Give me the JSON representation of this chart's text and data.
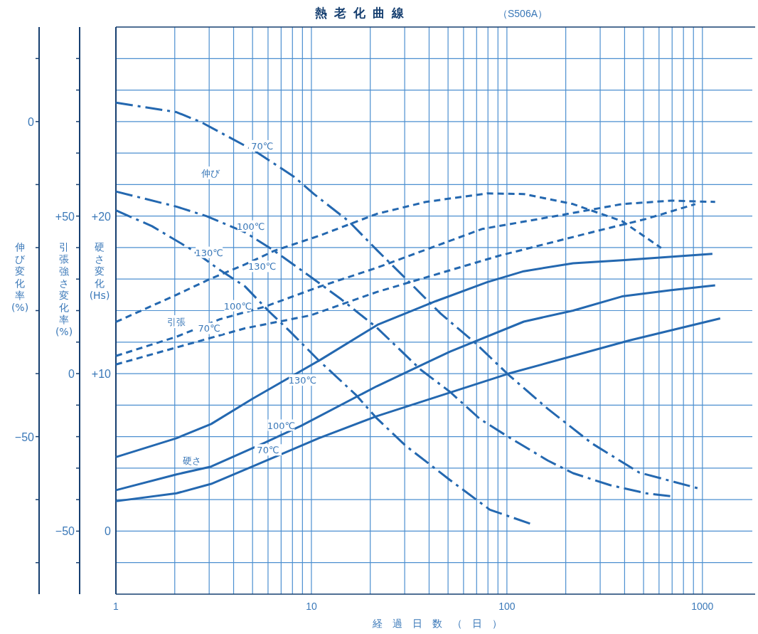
{
  "chart_data": {
    "type": "line",
    "title": "熱老化曲線",
    "subtitle": "（S506A）",
    "xlabel": "経過日数（日）",
    "ylabel": "硬さ変化(Hs)",
    "y2label": "引張強さ変化率(%)",
    "y3label": "伸び変化率(%)",
    "log": "x",
    "grid": true,
    "xlim": [
      1,
      1800
    ],
    "xticks": [
      1,
      {
        "value": 2,
        "label": null
      },
      {
        "value": 3,
        "label": null
      },
      {
        "value": 4,
        "label": null
      },
      {
        "value": 5,
        "label": null
      },
      {
        "value": 6,
        "label": null
      },
      {
        "value": 7,
        "label": null
      },
      {
        "value": 8,
        "label": null
      },
      {
        "value": 9,
        "label": null
      },
      10,
      {
        "value": 20,
        "label": null
      },
      {
        "value": 30,
        "label": null
      },
      {
        "value": 40,
        "label": null
      },
      {
        "value": 50,
        "label": null
      },
      {
        "value": 60,
        "label": null
      },
      {
        "value": 70,
        "label": null
      },
      {
        "value": 80,
        "label": null
      },
      {
        "value": 90,
        "label": null
      },
      100,
      {
        "value": 200,
        "label": null
      },
      {
        "value": 300,
        "label": null
      },
      {
        "value": 400,
        "label": null
      },
      {
        "value": 500,
        "label": null
      },
      {
        "value": 600,
        "label": null
      },
      {
        "value": 700,
        "label": null
      },
      {
        "value": 800,
        "label": null
      },
      {
        "value": 900,
        "label": null
      },
      1000
    ],
    "ylim": [
      -4,
      32
    ],
    "yticks": [
      {
        "value": -2,
        "label": null
      },
      0,
      {
        "value": 2,
        "label": null
      },
      {
        "value": 4,
        "label": null
      },
      {
        "value": 6,
        "label": null
      },
      {
        "value": 8,
        "label": null
      },
      {
        "value": 10,
        "label": "+10"
      },
      {
        "value": 12,
        "label": null
      },
      {
        "value": 14,
        "label": null
      },
      {
        "value": 16,
        "label": null
      },
      {
        "value": 18,
        "label": null
      },
      {
        "value": 20,
        "label": "+20"
      },
      {
        "value": 22,
        "label": null
      },
      {
        "value": 24,
        "label": null
      },
      {
        "value": 26,
        "label": null
      },
      {
        "value": 28,
        "label": null
      },
      {
        "value": 30,
        "label": null
      }
    ],
    "y2lim": [
      -70,
      110
    ],
    "y2ticks": [
      {
        "value": -60,
        "label": null
      },
      {
        "value": -50,
        "label": "−50"
      },
      {
        "value": -40,
        "label": null
      },
      {
        "value": -30,
        "label": null
      },
      {
        "value": -20,
        "label": null
      },
      {
        "value": -10,
        "label": null
      },
      0,
      {
        "value": 10,
        "label": null
      },
      {
        "value": 20,
        "label": null
      },
      {
        "value": 30,
        "label": null
      },
      {
        "value": 40,
        "label": null
      },
      {
        "value": 50,
        "label": "+50"
      },
      {
        "value": 60,
        "label": null
      },
      {
        "value": 70,
        "label": null
      },
      {
        "value": 80,
        "label": null
      },
      {
        "value": 90,
        "label": null
      },
      {
        "value": 100,
        "label": null
      }
    ],
    "y3lim": [
      -75,
      15
    ],
    "y3ticks": [
      {
        "value": -70,
        "label": null
      },
      {
        "value": -60,
        "label": null
      },
      {
        "value": -50,
        "label": "−50"
      },
      {
        "value": -40,
        "label": null
      },
      {
        "value": -30,
        "label": null
      },
      {
        "value": -20,
        "label": null
      },
      {
        "value": -10,
        "label": null
      },
      0,
      {
        "value": 10,
        "label": null
      }
    ],
    "series": [
      {
        "name": "70℃",
        "axis": "y3",
        "color": "#2468b0",
        "line_style": "dashdot",
        "x": [
          1,
          2.04,
          2.73,
          5.16,
          8.18,
          10.3,
          15.5,
          21.8,
          31.5,
          45.9,
          68.6,
          102,
          162,
          273,
          475,
          951
        ],
        "values": [
          3,
          1.5,
          -0.1,
          -4.7,
          -8.8,
          -11.5,
          -15.8,
          -20.5,
          -25.4,
          -30.5,
          -35.1,
          -40.2,
          -45.6,
          -51.1,
          -55.7,
          -58.2
        ]
      },
      {
        "name": "100℃",
        "axis": "y3",
        "color": "#2468b0",
        "line_style": "dashdot",
        "x": [
          1,
          2.04,
          2.9,
          4.59,
          6.31,
          9.67,
          14.2,
          21.6,
          36.3,
          51.2,
          72.8,
          100,
          162,
          218,
          337,
          516,
          709
        ],
        "values": [
          -11.1,
          -13.5,
          -15,
          -17.6,
          -20.3,
          -24.4,
          -28.2,
          -32.7,
          -39.4,
          -42.9,
          -47.2,
          -49.9,
          -53.8,
          -55.8,
          -57.7,
          -59,
          -59.5
        ]
      },
      {
        "name": "130℃",
        "axis": "y3",
        "color": "#2468b0",
        "line_style": "dashdot",
        "x": [
          1,
          1.53,
          2.43,
          3.42,
          4.59,
          6.1,
          7.71,
          10.9,
          16.8,
          21.6,
          30.5,
          51.2,
          81.8,
          137
        ],
        "values": [
          -14.1,
          -16.6,
          -20.3,
          -23.6,
          -26.2,
          -30.2,
          -33.2,
          -37.9,
          -43.3,
          -47.1,
          -51.5,
          -56.9,
          -61.6,
          -64
        ]
      },
      {
        "name": "70℃",
        "axis": "y2",
        "color": "#2468b0",
        "line_style": "dashed",
        "x": [
          1,
          2.04,
          4.59,
          9.92,
          21.6,
          91,
          290,
          516,
          920
        ],
        "values": [
          2.9,
          8.3,
          14.4,
          18.5,
          25.9,
          37.4,
          45.3,
          49.1,
          53.8
        ]
      },
      {
        "name": "100℃",
        "axis": "y2",
        "color": "#2468b0",
        "line_style": "dashed",
        "x": [
          1,
          2.04,
          3.42,
          5.75,
          10.9,
          21.6,
          74.6,
          205,
          388,
          692,
          1162
        ],
        "values": [
          5.6,
          11.7,
          17.3,
          21.2,
          27.5,
          33.6,
          45.9,
          50.7,
          53.8,
          54.9,
          54.5
        ]
      },
      {
        "name": "130℃",
        "axis": "y2",
        "color": "#2468b0",
        "line_style": "dashed",
        "x": [
          1,
          2.04,
          3.07,
          4.59,
          6.47,
          10.9,
          21.6,
          38.5,
          79.1,
          122,
          218,
          388,
          615
        ],
        "values": [
          16.4,
          25,
          30.2,
          34.7,
          39,
          43.7,
          50.7,
          54.5,
          57.2,
          57,
          53.8,
          48.4,
          39.9
        ]
      },
      {
        "name": "70℃",
        "axis": "y",
        "color": "#2468b0",
        "line_style": "solid",
        "x": [
          1,
          2.04,
          3.07,
          4.99,
          10.9,
          21.6,
          102,
          422,
          1233
        ],
        "values": [
          1.9,
          2.4,
          3,
          4.1,
          5.9,
          7.3,
          10,
          12.1,
          13.5
        ]
      },
      {
        "name": "100℃",
        "axis": "y",
        "color": "#2468b0",
        "line_style": "solid",
        "x": [
          1,
          2.04,
          3.07,
          5.75,
          8.9,
          21.6,
          51.2,
          122,
          218,
          388,
          692,
          1162
        ],
        "values": [
          2.6,
          3.6,
          4.1,
          5.6,
          6.7,
          9.2,
          11.4,
          13.3,
          14,
          14.9,
          15.3,
          15.6
        ]
      },
      {
        "name": "130℃",
        "axis": "y",
        "color": "#2468b0",
        "line_style": "solid",
        "x": [
          1,
          2.04,
          3.07,
          4.99,
          11.2,
          21.8,
          43.3,
          79.1,
          122,
          218,
          388,
          1125
        ],
        "values": [
          4.7,
          5.9,
          6.8,
          8.4,
          10.9,
          13.1,
          14.6,
          15.8,
          16.5,
          17,
          17.2,
          17.6
        ]
      }
    ],
    "annotations": [
      "伸び",
      "引張",
      "硬さ"
    ]
  }
}
